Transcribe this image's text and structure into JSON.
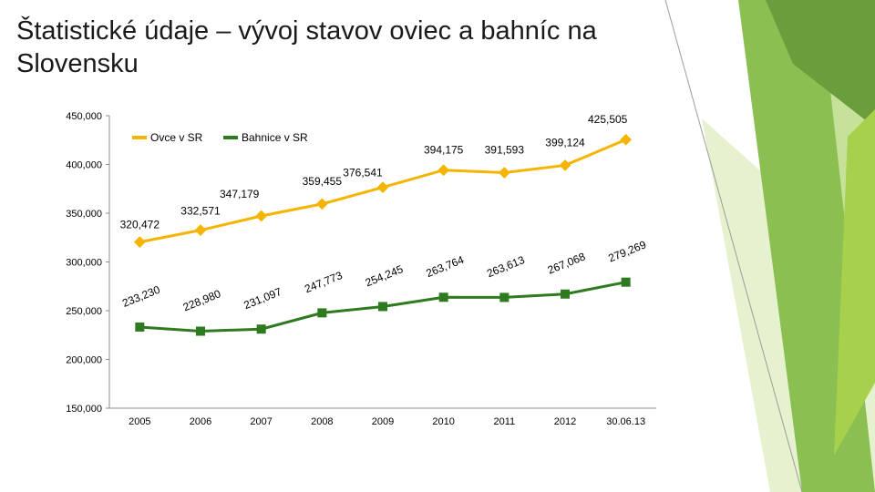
{
  "title": "Štatistické údaje – vývoj stavov oviec a bahníc na Slovensku",
  "colors": {
    "ovce": "#F5B400",
    "bahnice": "#2D7A1F",
    "accent_green": "#8DC63F",
    "dark_green": "#6B9E3C"
  },
  "chart_data": {
    "type": "line",
    "categories": [
      "2005",
      "2006",
      "2007",
      "2008",
      "2009",
      "2010",
      "2011",
      "2012",
      "30.06.13"
    ],
    "y_ticks": [
      "450,000",
      "400,000",
      "350,000",
      "300,000",
      "250,000",
      "200,000",
      "150,000"
    ],
    "ylim": [
      150000,
      450000
    ],
    "grid": false,
    "legend_position": "top-left",
    "series": [
      {
        "name": "Ovce v SR",
        "values": [
          320472,
          332571,
          347179,
          359455,
          376541,
          394175,
          391593,
          399124,
          425505
        ],
        "labels": [
          "320,472",
          "332,571",
          "347,179",
          "359,455",
          "376,541",
          "394,175",
          "391,593",
          "399,124",
          "425,505"
        ]
      },
      {
        "name": "Bahnice v SR",
        "values": [
          233230,
          228980,
          231097,
          247773,
          254245,
          263764,
          263613,
          267068,
          279269
        ],
        "labels": [
          "233,230",
          "228,980",
          "231,097",
          "247,773",
          "254,245",
          "263,764",
          "263,613",
          "267,068",
          "279,269"
        ]
      }
    ]
  }
}
